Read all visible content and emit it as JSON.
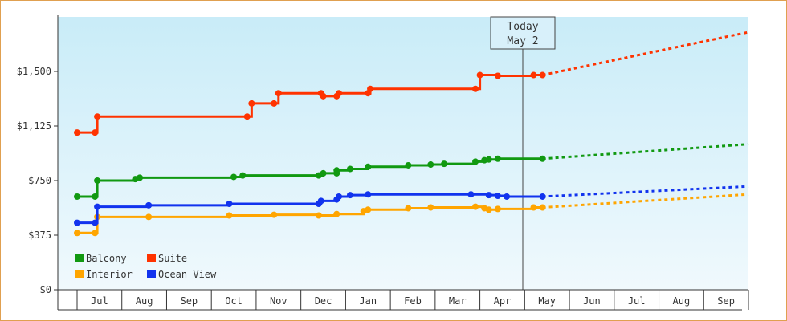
{
  "chart_data": {
    "type": "line",
    "title": "",
    "xlabel": "",
    "ylabel": "",
    "ylim": [
      0,
      1875
    ],
    "y_ticks": [
      {
        "value": 0,
        "label": "$0"
      },
      {
        "value": 375,
        "label": "$375"
      },
      {
        "value": 750,
        "label": "$750"
      },
      {
        "value": 1125,
        "label": "$1,125"
      },
      {
        "value": 1500,
        "label": "$1,500"
      }
    ],
    "x_months": [
      "Jul",
      "Aug",
      "Sep",
      "Oct",
      "Nov",
      "Dec",
      "Jan",
      "Feb",
      "Mar",
      "Apr",
      "May",
      "Jun",
      "Jul",
      "Aug",
      "Sep"
    ],
    "today_marker": {
      "line1": "Today",
      "line2": "May 2"
    },
    "legend_position": "bottom-left",
    "grid": false,
    "series": [
      {
        "name": "Balcony",
        "color": "#119911",
        "points": [
          [
            0,
            640
          ],
          [
            0.4,
            640
          ],
          [
            0.45,
            750
          ],
          [
            1.3,
            760
          ],
          [
            1.4,
            770
          ],
          [
            3.5,
            775
          ],
          [
            3.7,
            785
          ],
          [
            4.5,
            785
          ],
          [
            5.4,
            785
          ],
          [
            5.5,
            800
          ],
          [
            5.8,
            800
          ],
          [
            5.8,
            820
          ],
          [
            6.1,
            830
          ],
          [
            6.5,
            845
          ],
          [
            7.4,
            855
          ],
          [
            7.9,
            860
          ],
          [
            8.2,
            865
          ],
          [
            8.9,
            880
          ],
          [
            9.1,
            890
          ],
          [
            9.2,
            895
          ],
          [
            9.4,
            900
          ],
          [
            10.2,
            900
          ],
          [
            10.4,
            900
          ]
        ],
        "forecast": [
          [
            10.4,
            900
          ],
          [
            16,
            1000
          ]
        ]
      },
      {
        "name": "Suite",
        "color": "#ff3300",
        "points": [
          [
            0,
            1080
          ],
          [
            0.4,
            1080
          ],
          [
            0.45,
            1190
          ],
          [
            3.5,
            1190
          ],
          [
            3.8,
            1190
          ],
          [
            3.9,
            1280
          ],
          [
            4.4,
            1280
          ],
          [
            4.5,
            1350
          ],
          [
            5.45,
            1350
          ],
          [
            5.5,
            1330
          ],
          [
            5.8,
            1330
          ],
          [
            5.85,
            1350
          ],
          [
            6.5,
            1350
          ],
          [
            6.55,
            1380
          ],
          [
            8.9,
            1380
          ],
          [
            9,
            1475
          ],
          [
            9.4,
            1470
          ],
          [
            10.2,
            1475
          ],
          [
            10.4,
            1475
          ]
        ],
        "forecast": [
          [
            10.4,
            1475
          ],
          [
            16,
            1770
          ]
        ]
      },
      {
        "name": "Interior",
        "color": "#ffa500",
        "points": [
          [
            0,
            390
          ],
          [
            0.4,
            390
          ],
          [
            0.45,
            500
          ],
          [
            1.6,
            500
          ],
          [
            3.4,
            510
          ],
          [
            4.4,
            515
          ],
          [
            5.4,
            510
          ],
          [
            5.8,
            520
          ],
          [
            6.4,
            540
          ],
          [
            6.5,
            550
          ],
          [
            7.4,
            560
          ],
          [
            7.9,
            565
          ],
          [
            8.9,
            570
          ],
          [
            9.1,
            560
          ],
          [
            9.2,
            550
          ],
          [
            9.4,
            555
          ],
          [
            10.2,
            565
          ],
          [
            10.4,
            565
          ]
        ],
        "forecast": [
          [
            10.4,
            565
          ],
          [
            16,
            655
          ]
        ]
      },
      {
        "name": "Ocean View",
        "color": "#1133ee",
        "points": [
          [
            0,
            460
          ],
          [
            0.4,
            460
          ],
          [
            0.45,
            570
          ],
          [
            1.6,
            580
          ],
          [
            3.4,
            590
          ],
          [
            4.4,
            590
          ],
          [
            5.4,
            590
          ],
          [
            5.45,
            610
          ],
          [
            5.8,
            620
          ],
          [
            5.85,
            640
          ],
          [
            6.1,
            650
          ],
          [
            6.5,
            655
          ],
          [
            8.8,
            655
          ],
          [
            9.2,
            650
          ],
          [
            9.4,
            645
          ],
          [
            9.6,
            640
          ],
          [
            10.2,
            640
          ],
          [
            10.4,
            640
          ]
        ],
        "forecast": [
          [
            10.4,
            640
          ],
          [
            16,
            710
          ]
        ]
      }
    ]
  }
}
